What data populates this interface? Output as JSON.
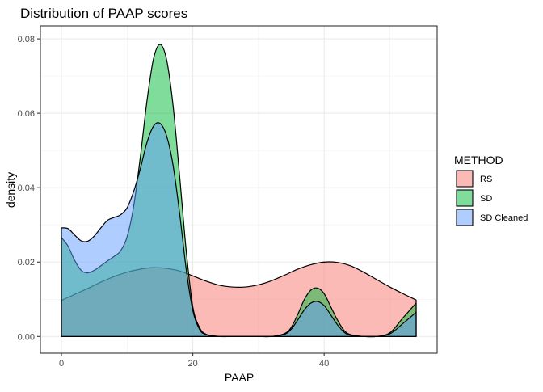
{
  "chart_data": {
    "type": "area",
    "title": "Distribution of PAAP scores",
    "xlabel": "PAAP",
    "ylabel": "density",
    "xlim": [
      -3.2,
      57.2
    ],
    "ylim": [
      -0.0045,
      0.0835
    ],
    "x_ticks": [
      0,
      20,
      40
    ],
    "x_tick_labels": [
      "0",
      "20",
      "40"
    ],
    "y_ticks": [
      0,
      0.02,
      0.04,
      0.06,
      0.08
    ],
    "y_tick_labels": [
      "0.00",
      "0.02",
      "0.04",
      "0.06",
      "0.08"
    ],
    "grid": true,
    "legend_position": "right",
    "legend_title": "METHOD",
    "series": [
      {
        "name": "RS",
        "color": "#F8766D",
        "x": [
          0,
          2,
          4,
          6,
          8,
          10,
          12,
          14,
          16,
          18,
          20,
          22,
          24,
          26,
          28,
          30,
          32,
          34,
          36,
          38,
          40,
          42,
          44,
          46,
          48,
          50,
          52,
          54
        ],
        "y": [
          0.0097,
          0.0113,
          0.0129,
          0.0146,
          0.0161,
          0.0173,
          0.0181,
          0.0185,
          0.0183,
          0.0176,
          0.0163,
          0.0149,
          0.0138,
          0.0133,
          0.0133,
          0.0139,
          0.015,
          0.0165,
          0.0181,
          0.0193,
          0.02,
          0.0199,
          0.019,
          0.0173,
          0.0153,
          0.0133,
          0.0115,
          0.0098
        ]
      },
      {
        "name": "SD",
        "color": "#00BA38",
        "x": [
          0,
          1,
          2,
          3,
          4,
          5,
          6,
          7,
          8,
          9,
          10,
          11,
          12,
          13,
          14,
          15,
          16,
          17,
          18,
          19,
          20,
          21,
          22,
          24,
          26,
          28,
          30,
          32,
          34,
          35,
          36,
          37,
          38,
          39,
          40,
          41,
          42,
          43,
          44,
          46,
          48,
          50,
          52,
          54
        ],
        "y": [
          0.0266,
          0.0243,
          0.0205,
          0.0178,
          0.0171,
          0.0178,
          0.019,
          0.0203,
          0.0215,
          0.023,
          0.0268,
          0.035,
          0.048,
          0.063,
          0.0745,
          0.0785,
          0.0745,
          0.062,
          0.043,
          0.023,
          0.008,
          0.0025,
          0.0006,
          0.0,
          0.0,
          0.0,
          0.0,
          0.0,
          0.0008,
          0.0025,
          0.006,
          0.01,
          0.0125,
          0.013,
          0.0115,
          0.008,
          0.0045,
          0.0017,
          0.0005,
          0.0,
          0.0,
          0.001,
          0.005,
          0.009
        ]
      },
      {
        "name": "SD Cleaned",
        "color": "#619CFF",
        "x": [
          0,
          1,
          2,
          3,
          4,
          5,
          6,
          7,
          8,
          9,
          10,
          11,
          12,
          13,
          14,
          15,
          16,
          17,
          18,
          19,
          20,
          21,
          22,
          24,
          26,
          28,
          30,
          32,
          34,
          35,
          36,
          37,
          38,
          39,
          40,
          41,
          42,
          43,
          44,
          46,
          48,
          50,
          52,
          54
        ],
        "y": [
          0.0292,
          0.029,
          0.0273,
          0.0257,
          0.0256,
          0.027,
          0.0292,
          0.0312,
          0.032,
          0.0327,
          0.0346,
          0.039,
          0.045,
          0.052,
          0.0565,
          0.0573,
          0.054,
          0.046,
          0.033,
          0.018,
          0.007,
          0.002,
          0.0005,
          0.0,
          0.0,
          0.0,
          0.0,
          0.0,
          0.0006,
          0.002,
          0.0045,
          0.0072,
          0.009,
          0.0094,
          0.0083,
          0.0058,
          0.0032,
          0.0012,
          0.0003,
          0.0,
          0.0,
          0.0007,
          0.0035,
          0.0065
        ]
      }
    ]
  }
}
